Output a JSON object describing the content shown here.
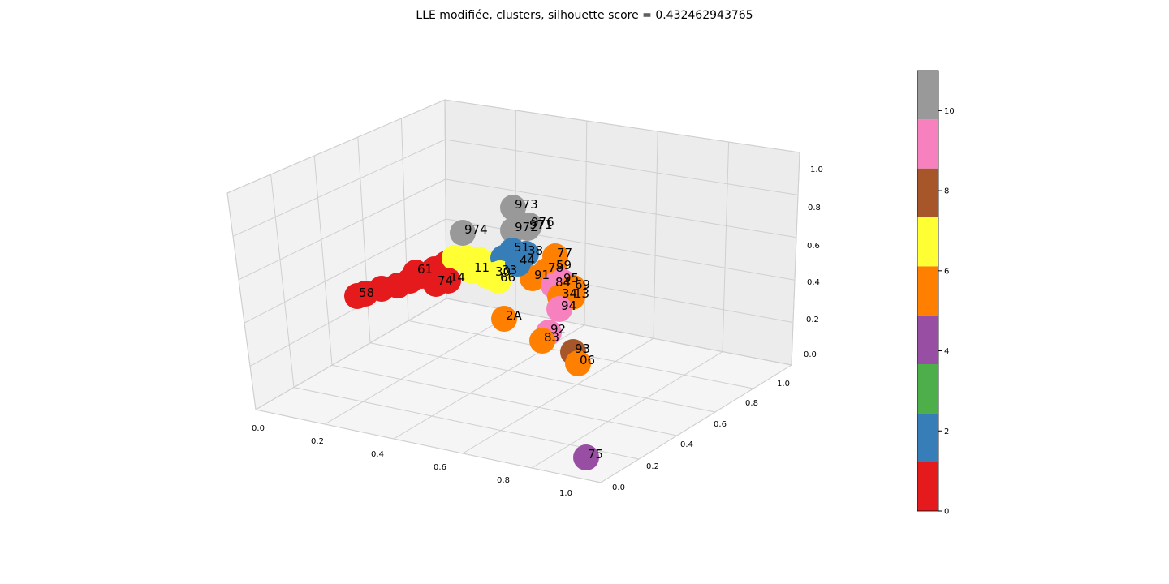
{
  "chart_data": {
    "type": "scatter",
    "title": "LLE modifiée, clusters, silhouette score = 0.432462943765",
    "xlabel": "",
    "ylabel": "",
    "zlabel": "",
    "x_ticks": [
      "0.0",
      "0.2",
      "0.4",
      "0.6",
      "0.8",
      "1.0"
    ],
    "y_ticks": [
      "0.0",
      "0.2",
      "0.4",
      "0.6",
      "0.8",
      "1.0"
    ],
    "z_ticks": [
      "0.0",
      "0.2",
      "0.4",
      "0.6",
      "0.8",
      "1.0"
    ],
    "xlim": [
      0,
      1
    ],
    "ylim": [
      0,
      1
    ],
    "zlim": [
      0,
      1
    ],
    "grid": true,
    "colorbar": {
      "ticks": [
        "0",
        "2",
        "4",
        "6",
        "8",
        "10"
      ],
      "range": [
        0,
        11
      ],
      "colors": [
        "#e41a1c",
        "#377eb8",
        "#4daf4a",
        "#984ea3",
        "#ff7f00",
        "#ffff33",
        "#a65628",
        "#f781bf",
        "#999999"
      ]
    },
    "points": [
      {
        "label": "973",
        "cluster": 10
      },
      {
        "label": "976",
        "cluster": 10
      },
      {
        "label": "971",
        "cluster": 10
      },
      {
        "label": "972",
        "cluster": 10
      },
      {
        "label": "974",
        "cluster": 10
      },
      {
        "label": "51",
        "cluster": 2
      },
      {
        "label": "38",
        "cluster": 2
      },
      {
        "label": "77",
        "cluster": 6
      },
      {
        "label": "59",
        "cluster": 6
      },
      {
        "label": "78",
        "cluster": 6
      },
      {
        "label": "91",
        "cluster": 6
      },
      {
        "label": "95",
        "cluster": 9
      },
      {
        "label": "84",
        "cluster": 9
      },
      {
        "label": "69",
        "cluster": 6
      },
      {
        "label": "34",
        "cluster": 6
      },
      {
        "label": "13",
        "cluster": 6
      },
      {
        "label": "94",
        "cluster": 9
      },
      {
        "label": "2A",
        "cluster": 6
      },
      {
        "label": "92",
        "cluster": 9
      },
      {
        "label": "83",
        "cluster": 6
      },
      {
        "label": "93",
        "cluster": 8
      },
      {
        "label": "06",
        "cluster": 6
      },
      {
        "label": "75",
        "cluster": 4
      },
      {
        "label": "11",
        "cluster": 7
      },
      {
        "label": "30",
        "cluster": 7
      },
      {
        "label": "33",
        "cluster": 7
      },
      {
        "label": "66",
        "cluster": 7
      },
      {
        "label": "44",
        "cluster": 2
      },
      {
        "label": "74",
        "cluster": 0
      },
      {
        "label": "14",
        "cluster": 0
      },
      {
        "label": "61",
        "cluster": 1
      },
      {
        "label": "58",
        "cluster": 0
      }
    ]
  }
}
